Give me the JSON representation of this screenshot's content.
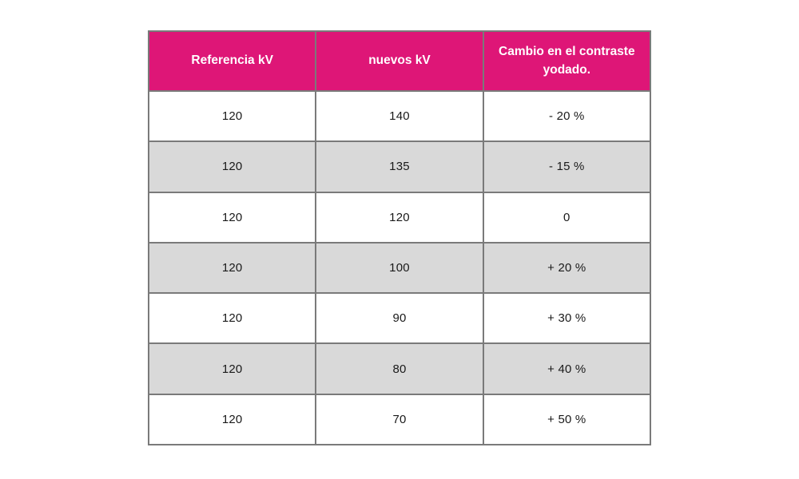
{
  "table": {
    "headers": [
      "Referencia kV",
      "nuevos kV",
      "Cambio en el contraste yodado."
    ],
    "rows": [
      {
        "cells": [
          "120",
          "140",
          "- 20 %"
        ]
      },
      {
        "cells": [
          "120",
          "135",
          "- 15 %"
        ]
      },
      {
        "cells": [
          "120",
          "120",
          "0"
        ]
      },
      {
        "cells": [
          "120",
          "100",
          "+ 20 %"
        ]
      },
      {
        "cells": [
          "120",
          "90",
          "+ 30 %"
        ]
      },
      {
        "cells": [
          "120",
          "80",
          "+ 40 %"
        ]
      },
      {
        "cells": [
          "120",
          "70",
          "+ 50 %"
        ]
      }
    ]
  },
  "colors": {
    "header_bg": "#de1677",
    "header_text": "#ffffff",
    "row_bg": "#ffffff",
    "row_alt_bg": "#d9d9d9",
    "border": "#7a7a7a",
    "outer_border": "#6e6e6e",
    "body_text": "#1a1a1a",
    "page_bg": "#ffffff"
  }
}
